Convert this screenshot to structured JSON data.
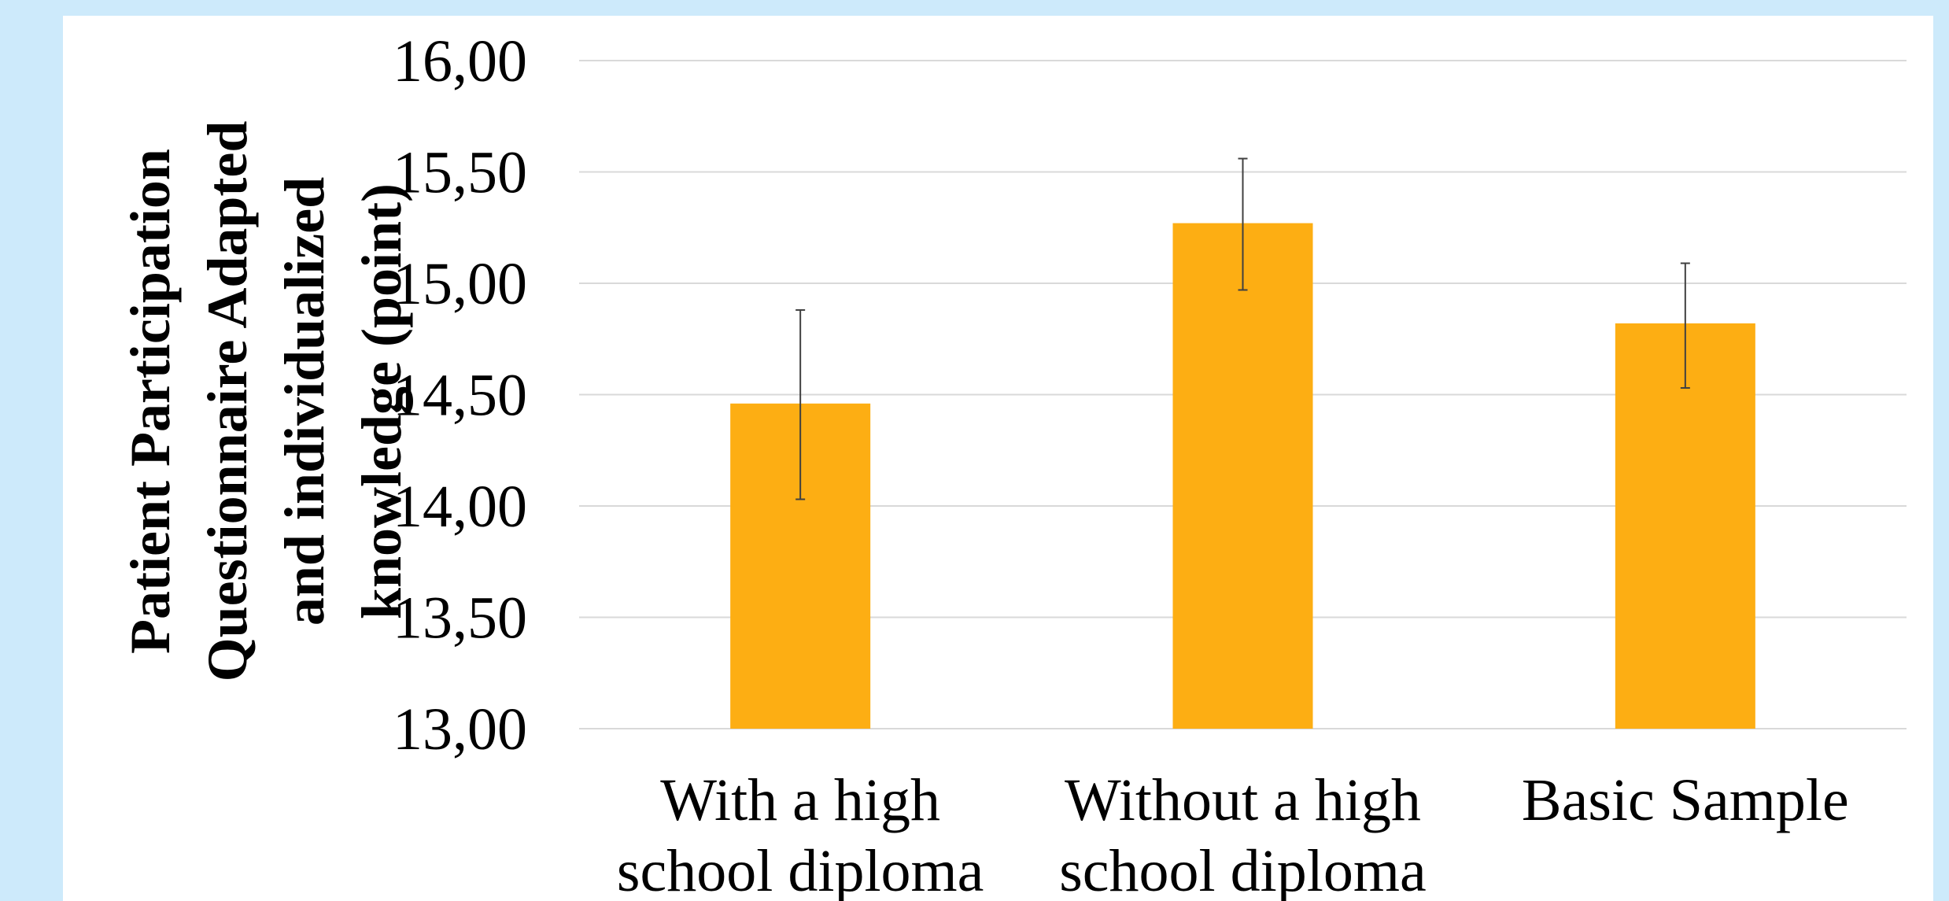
{
  "chart_data": {
    "type": "bar",
    "ylabel_lines": [
      "Patient Participation",
      "Questionnaire  Adapted",
      "and individualized",
      "knowledge (point)"
    ],
    "categories": [
      [
        "With a high",
        "school diploma"
      ],
      [
        "Without a high",
        "school diploma"
      ],
      [
        "Basic Sample"
      ]
    ],
    "values": [
      14.46,
      15.27,
      14.82
    ],
    "error_low": [
      14.03,
      14.97,
      14.53
    ],
    "error_high": [
      14.88,
      15.56,
      15.09
    ],
    "ylim": [
      13.0,
      16.0
    ],
    "yticks": [
      13.0,
      13.5,
      14.0,
      14.5,
      15.0,
      15.5,
      16.0
    ],
    "ytick_labels": [
      "13,00",
      "13,50",
      "14,00",
      "14,50",
      "15,00",
      "15,50",
      "16,00"
    ],
    "grid": true,
    "legend": "none",
    "colors": {
      "bar": "#FDAE13",
      "grid": "#d9d9d9",
      "error_bar": "#404040",
      "frame_background": "#cdeafb",
      "panel_background": "#ffffff"
    }
  }
}
